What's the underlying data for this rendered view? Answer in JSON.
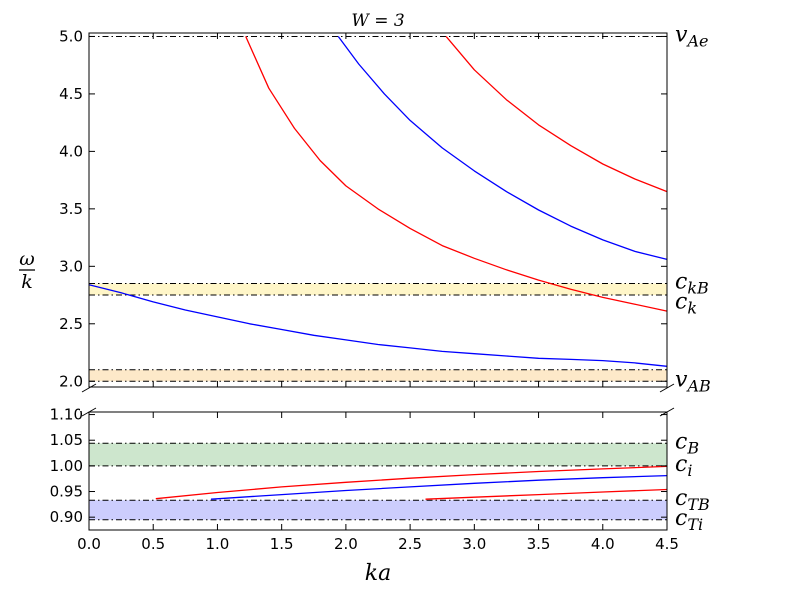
{
  "chart_data": {
    "type": "line",
    "title": "W = 3",
    "xlabel": "ka",
    "ylabel_numerator": "ω",
    "ylabel_denominator": "k",
    "xlim": [
      0.0,
      4.5
    ],
    "x_ticks": [
      "0.0",
      "0.5",
      "1.0",
      "1.5",
      "2.0",
      "2.5",
      "3.0",
      "3.5",
      "4.0",
      "4.5"
    ],
    "grid": false,
    "panels": {
      "upper": {
        "ylim": [
          1.95,
          5.03
        ],
        "y_ticks": [
          "2.0",
          "2.5",
          "3.0",
          "3.5",
          "4.0",
          "4.5",
          "5.0"
        ],
        "bands": [
          {
            "y0": 2.75,
            "y1": 2.85,
            "color": "#fff6c8"
          },
          {
            "y0": 2.0,
            "y1": 2.1,
            "color": "#fde9c9"
          }
        ],
        "reference_lines": [
          {
            "y": 5.0,
            "label_main": "v",
            "label_sub": "Ae"
          },
          {
            "y": 2.85,
            "label_main": "c",
            "label_sub": "kB"
          },
          {
            "y": 2.75,
            "label_main": "c",
            "label_sub": "k"
          },
          {
            "y": 2.1,
            "label_main": "",
            "label_sub": ""
          },
          {
            "y": 2.0,
            "label_main": "v",
            "label_sub": "AB"
          }
        ],
        "series": [
          {
            "color": "#ff0000",
            "x": [
              1.22,
              1.4,
              1.6,
              1.8,
              2.0,
              2.25,
              2.5,
              2.75,
              3.0,
              3.25,
              3.5,
              3.75,
              4.0,
              4.25,
              4.5
            ],
            "y": [
              5.0,
              4.55,
              4.2,
              3.92,
              3.7,
              3.5,
              3.33,
              3.18,
              3.07,
              2.97,
              2.88,
              2.8,
              2.73,
              2.67,
              2.61
            ]
          },
          {
            "color": "#0000ff",
            "x": [
              1.94,
              2.1,
              2.3,
              2.5,
              2.75,
              3.0,
              3.25,
              3.5,
              3.75,
              4.0,
              4.25,
              4.5
            ],
            "y": [
              5.0,
              4.76,
              4.5,
              4.27,
              4.03,
              3.83,
              3.65,
              3.49,
              3.35,
              3.23,
              3.13,
              3.06
            ]
          },
          {
            "color": "#ff0000",
            "x": [
              2.78,
              3.0,
              3.25,
              3.5,
              3.75,
              4.0,
              4.25,
              4.5
            ],
            "y": [
              5.0,
              4.71,
              4.45,
              4.23,
              4.05,
              3.89,
              3.76,
              3.65
            ]
          },
          {
            "color": "#0000ff",
            "x": [
              0.0,
              0.25,
              0.5,
              0.75,
              1.0,
              1.25,
              1.5,
              1.75,
              2.0,
              2.25,
              2.5,
              2.75,
              3.0,
              3.25,
              3.5,
              3.75,
              4.0,
              4.25,
              4.5
            ],
            "y": [
              2.84,
              2.77,
              2.69,
              2.62,
              2.56,
              2.5,
              2.45,
              2.4,
              2.36,
              2.32,
              2.29,
              2.26,
              2.24,
              2.22,
              2.2,
              2.19,
              2.18,
              2.16,
              2.13
            ]
          }
        ]
      },
      "lower": {
        "ylim": [
          0.875,
          1.105
        ],
        "y_ticks": [
          "0.90",
          "0.95",
          "1.00",
          "1.05",
          "1.10"
        ],
        "bands": [
          {
            "y0": 1.0,
            "y1": 1.044,
            "color": "#cde6cd"
          },
          {
            "y0": 0.895,
            "y1": 0.933,
            "color": "#cccdfd"
          }
        ],
        "reference_lines": [
          {
            "y": 1.044,
            "label_main": "c",
            "label_sub": "B"
          },
          {
            "y": 1.0,
            "label_main": "c",
            "label_sub": "i"
          },
          {
            "y": 0.933,
            "label_main": "c",
            "label_sub": "TB"
          },
          {
            "y": 0.895,
            "label_main": "c",
            "label_sub": "Ti"
          }
        ],
        "series": [
          {
            "color": "#ff0000",
            "x": [
              0.52,
              1.0,
              1.5,
              2.0,
              2.5,
              3.0,
              3.5,
              4.0,
              4.5
            ],
            "y": [
              0.936,
              0.948,
              0.959,
              0.968,
              0.976,
              0.983,
              0.989,
              0.994,
              0.999
            ]
          },
          {
            "color": "#0000ff",
            "x": [
              0.95,
              1.5,
              2.0,
              2.5,
              3.0,
              3.5,
              4.0,
              4.5
            ],
            "y": [
              0.935,
              0.944,
              0.952,
              0.959,
              0.966,
              0.972,
              0.977,
              0.981
            ]
          },
          {
            "color": "#ff0000",
            "x": [
              2.62,
              3.0,
              3.5,
              4.0,
              4.5
            ],
            "y": [
              0.935,
              0.939,
              0.944,
              0.949,
              0.954
            ]
          }
        ]
      }
    }
  }
}
